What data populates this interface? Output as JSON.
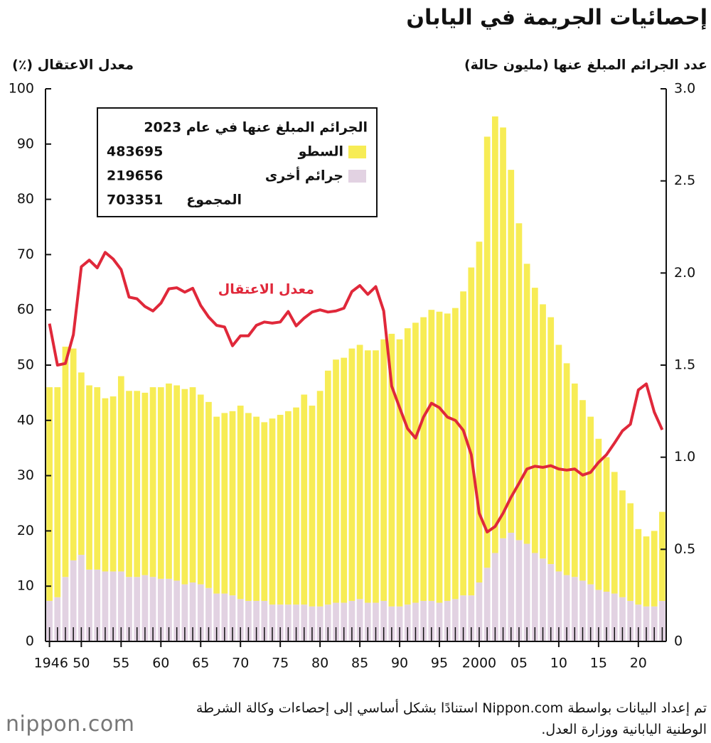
{
  "chart_data": {
    "type": "bar",
    "title": "إحصائيات الجريمة في اليابان",
    "y_label": "معدل الاعتقال (٪)",
    "y2_label": "عدد الجرائم المبلغ عنها (مليون حالة)",
    "x": [
      1946,
      1947,
      1948,
      1949,
      1950,
      1951,
      1952,
      1953,
      1954,
      1955,
      1956,
      1957,
      1958,
      1959,
      1960,
      1961,
      1962,
      1963,
      1964,
      1965,
      1966,
      1967,
      1968,
      1969,
      1970,
      1971,
      1972,
      1973,
      1974,
      1975,
      1976,
      1977,
      1978,
      1979,
      1980,
      1981,
      1982,
      1983,
      1984,
      1985,
      1986,
      1987,
      1988,
      1989,
      1990,
      1991,
      1992,
      1993,
      1994,
      1995,
      1996,
      1997,
      1998,
      1999,
      2000,
      2001,
      2002,
      2003,
      2004,
      2005,
      2006,
      2007,
      2008,
      2009,
      2010,
      2011,
      2012,
      2013,
      2014,
      2015,
      2016,
      2017,
      2018,
      2019,
      2020,
      2021,
      2022,
      2023
    ],
    "xlim": [
      1945.5,
      2023.5
    ],
    "xticks": [
      1946,
      {
        "value": 1950,
        "label": "50"
      },
      {
        "value": 1955,
        "label": "55"
      },
      {
        "value": 1960,
        "label": "60"
      },
      {
        "value": 1965,
        "label": "65"
      },
      {
        "value": 1970,
        "label": "70"
      },
      {
        "value": 1975,
        "label": "75"
      },
      {
        "value": 1980,
        "label": "80"
      },
      {
        "value": 1985,
        "label": "85"
      },
      {
        "value": 1990,
        "label": "90"
      },
      {
        "value": 1995,
        "label": "95"
      },
      2000,
      {
        "value": 2005,
        "label": "05"
      },
      {
        "value": 2010,
        "label": "10"
      },
      {
        "value": 2015,
        "label": "15"
      },
      {
        "value": 2020,
        "label": "20"
      }
    ],
    "ylim": [
      0,
      100
    ],
    "yticks": [
      0,
      10,
      20,
      30,
      40,
      50,
      60,
      70,
      80,
      90,
      100
    ],
    "y2lim": [
      0,
      3
    ],
    "y2ticks": [
      0,
      0.5,
      {
        "value": 1,
        "label": "1.0"
      },
      1.5,
      {
        "value": 2,
        "label": "2.0"
      },
      2.5,
      {
        "value": 3,
        "label": "3.0"
      }
    ],
    "series": [
      {
        "name": "السطو",
        "color": "#f7ec55",
        "axis": "y2",
        "stack": "top",
        "values": [
          1.16,
          1.14,
          1.25,
          1.15,
          0.99,
          1.0,
          0.99,
          0.94,
          0.95,
          1.06,
          1.01,
          1.01,
          0.99,
          1.03,
          1.04,
          1.06,
          1.06,
          1.06,
          1.06,
          1.03,
          1.01,
          0.96,
          0.98,
          1.0,
          1.05,
          1.02,
          1.0,
          0.97,
          1.01,
          1.03,
          1.05,
          1.07,
          1.14,
          1.09,
          1.17,
          1.27,
          1.32,
          1.33,
          1.37,
          1.38,
          1.37,
          1.37,
          1.42,
          1.48,
          1.45,
          1.5,
          1.52,
          1.54,
          1.58,
          1.58,
          1.56,
          1.58,
          1.65,
          1.78,
          1.85,
          2.34,
          2.37,
          2.23,
          1.97,
          1.72,
          1.52,
          1.44,
          1.38,
          1.34,
          1.23,
          1.15,
          1.05,
          0.98,
          0.91,
          0.82,
          0.73,
          0.66,
          0.58,
          0.53,
          0.41,
          0.38,
          0.41,
          0.483695
        ]
      },
      {
        "name": "جرائم أخرى",
        "color": "#e2d2e2",
        "axis": "y2",
        "stack": "bottom",
        "values": [
          0.22,
          0.24,
          0.35,
          0.44,
          0.47,
          0.39,
          0.39,
          0.38,
          0.38,
          0.38,
          0.35,
          0.35,
          0.36,
          0.35,
          0.34,
          0.34,
          0.33,
          0.31,
          0.32,
          0.31,
          0.29,
          0.26,
          0.26,
          0.25,
          0.23,
          0.22,
          0.22,
          0.22,
          0.2,
          0.2,
          0.2,
          0.2,
          0.2,
          0.19,
          0.19,
          0.2,
          0.21,
          0.21,
          0.22,
          0.23,
          0.21,
          0.21,
          0.22,
          0.19,
          0.19,
          0.2,
          0.21,
          0.22,
          0.22,
          0.21,
          0.22,
          0.23,
          0.25,
          0.25,
          0.32,
          0.4,
          0.48,
          0.56,
          0.59,
          0.55,
          0.53,
          0.48,
          0.45,
          0.42,
          0.38,
          0.36,
          0.35,
          0.33,
          0.31,
          0.28,
          0.27,
          0.26,
          0.24,
          0.22,
          0.2,
          0.19,
          0.19,
          0.219656
        ]
      },
      {
        "name": "معدل الاعتقال",
        "color": "#e0283a",
        "axis": "y",
        "kind": "line",
        "values": [
          57.5,
          50,
          50.3,
          55.5,
          67.8,
          69,
          67.6,
          70.4,
          69.2,
          67.3,
          62.3,
          62,
          60.6,
          59.8,
          61.2,
          63.8,
          64,
          63.2,
          63.9,
          60.8,
          58.7,
          57.2,
          56.9,
          53.5,
          55.3,
          55.3,
          57.2,
          57.8,
          57.6,
          57.8,
          59.7,
          57.1,
          58.5,
          59.6,
          60,
          59.6,
          59.8,
          60.3,
          63.3,
          64.4,
          62.8,
          64.2,
          59.8,
          46.2,
          42.3,
          38.5,
          36.8,
          40.6,
          43.1,
          42.3,
          40.6,
          40,
          38.2,
          33.8,
          23.2,
          19.8,
          20.8,
          23.2,
          26.1,
          28.6,
          31.2,
          31.7,
          31.5,
          31.8,
          31.2,
          31,
          31.2,
          30.1,
          30.6,
          32.4,
          33.8,
          35.9,
          38.1,
          39.3,
          45.5,
          46.6,
          41.5,
          38.3
        ]
      }
    ],
    "legend": {
      "title": "الجرائم المبلغ عنها في عام 2023",
      "values": [
        483695,
        219656,
        703351
      ],
      "total_label": "المجموع"
    },
    "source": "تم إعداد البيانات بواسطة Nippon.com استنادًا بشكل أساسي إلى إحصاءات وكالة الشرطة الوطنية اليابانية ووزارة العدل.",
    "logo": "nippon.com"
  }
}
